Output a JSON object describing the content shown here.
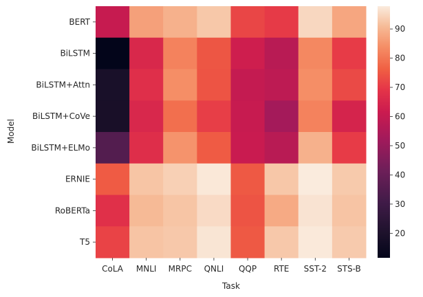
{
  "chart_data": {
    "type": "heatmap",
    "title": "",
    "xlabel": "Task",
    "ylabel": "Model",
    "x_categories": [
      "CoLA",
      "MNLI",
      "MRPC",
      "QNLI",
      "QQP",
      "RTE",
      "SST-2",
      "STS-B"
    ],
    "y_categories": [
      "BERT",
      "BiLSTM",
      "BiLSTM+Attn",
      "BiLSTM+CoVe",
      "BiLSTM+ELMo",
      "ERNIE",
      "RoBERTa",
      "T5"
    ],
    "values": [
      [
        60.5,
        86.7,
        89.3,
        92.7,
        72.1,
        70.1,
        94.9,
        87.6
      ],
      [
        11.6,
        65.6,
        81.8,
        74.6,
        62.5,
        57.4,
        82.8,
        70.3
      ],
      [
        18.6,
        67.6,
        83.9,
        74.3,
        60.1,
        58.4,
        83.8,
        72.8
      ],
      [
        18.5,
        65.4,
        78.7,
        70.8,
        60.6,
        52.7,
        81.9,
        64.4
      ],
      [
        35.0,
        67.2,
        84.7,
        75.5,
        61.1,
        57.4,
        89.3,
        70.3
      ],
      [
        75.5,
        92.3,
        93.9,
        97.3,
        75.2,
        92.6,
        97.8,
        93.0
      ],
      [
        67.8,
        90.8,
        92.3,
        95.4,
        74.3,
        88.2,
        96.7,
        92.2
      ],
      [
        71.6,
        92.2,
        92.8,
        96.9,
        75.1,
        92.8,
        97.5,
        93.1
      ]
    ],
    "colorbar": {
      "min": 11.6,
      "max": 97.8,
      "ticks": [
        20,
        30,
        40,
        50,
        60,
        70,
        80,
        90
      ],
      "colormap": "rocket"
    },
    "grid": false,
    "legend": "colorbar-right"
  }
}
